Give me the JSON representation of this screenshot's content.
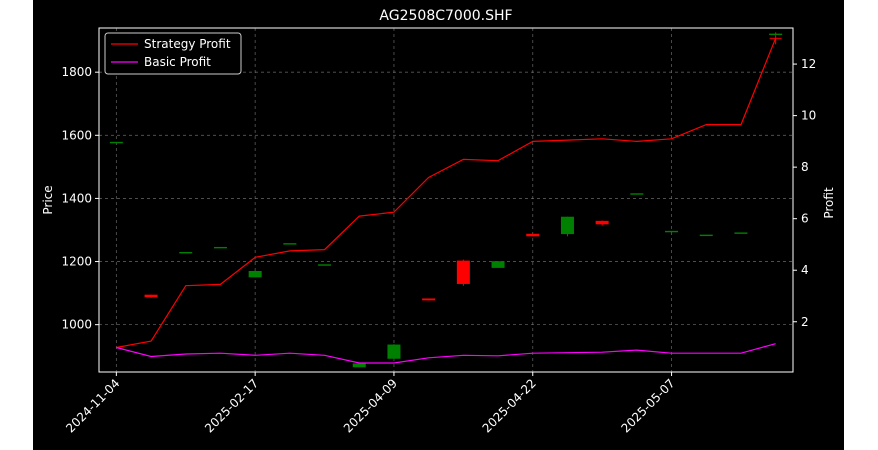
{
  "colors": {
    "background": "#000000",
    "strategy_profit": "#ff0000",
    "basic_profit": "#ff00ff",
    "candle_up": "#008000",
    "candle_down": "#ff0000",
    "grid": "#808080",
    "axes": "#ffffff"
  },
  "chart_data": {
    "type": "line",
    "title": "AG2508C7000.SHF",
    "ylabel_left": "Price",
    "ylabel_right": "Profit",
    "x_index_range": [
      -0.5,
      19.5
    ],
    "x_ticks": [
      {
        "label": "2024-11-04",
        "index": 0
      },
      {
        "label": "2025-02-17",
        "index": 4
      },
      {
        "label": "2025-04-09",
        "index": 8
      },
      {
        "label": "2025-04-22",
        "index": 12
      },
      {
        "label": "2025-05-07",
        "index": 16
      }
    ],
    "ylim_left": [
      850,
      1940
    ],
    "yticks_left": [
      1000,
      1200,
      1400,
      1600,
      1800
    ],
    "ylim_right": [
      0.05,
      13.4
    ],
    "yticks_right": [
      2,
      4,
      6,
      8,
      10,
      12
    ],
    "grid": true,
    "legend_position": "upper left",
    "legend": [
      {
        "label": "Strategy Profit",
        "color": "#ff0000"
      },
      {
        "label": "Basic Profit",
        "color": "#ff00ff"
      }
    ],
    "candles": [
      {
        "i": 0,
        "open": 1577,
        "close": 1577,
        "high": 1577,
        "low": 1577
      },
      {
        "i": 1,
        "open": 1095,
        "close": 1087,
        "high": 1095,
        "low": 1085
      },
      {
        "i": 2,
        "open": 1228,
        "close": 1228,
        "high": 1228,
        "low": 1228
      },
      {
        "i": 3,
        "open": 1244,
        "close": 1244,
        "high": 1244,
        "low": 1244
      },
      {
        "i": 4,
        "open": 1150,
        "close": 1170,
        "high": 1172,
        "low": 1150
      },
      {
        "i": 5,
        "open": 1256,
        "close": 1256,
        "high": 1256,
        "low": 1256
      },
      {
        "i": 6,
        "open": 1189,
        "close": 1189,
        "high": 1189,
        "low": 1189
      },
      {
        "i": 7,
        "open": 865,
        "close": 877,
        "high": 877,
        "low": 865
      },
      {
        "i": 8,
        "open": 892,
        "close": 937,
        "high": 938,
        "low": 892
      },
      {
        "i": 9,
        "open": 1083,
        "close": 1077,
        "high": 1083,
        "low": 1077
      },
      {
        "i": 10,
        "open": 1203,
        "close": 1129,
        "high": 1206,
        "low": 1123
      },
      {
        "i": 11,
        "open": 1180,
        "close": 1201,
        "high": 1201,
        "low": 1180
      },
      {
        "i": 12,
        "open": 1288,
        "close": 1280,
        "high": 1288,
        "low": 1280
      },
      {
        "i": 13,
        "open": 1287,
        "close": 1342,
        "high": 1342,
        "low": 1280
      },
      {
        "i": 14,
        "open": 1329,
        "close": 1318,
        "high": 1330,
        "low": 1314
      },
      {
        "i": 15,
        "open": 1414,
        "close": 1414,
        "high": 1414,
        "low": 1414
      },
      {
        "i": 16,
        "open": 1295,
        "close": 1295,
        "high": 1295,
        "low": 1295
      },
      {
        "i": 17,
        "open": 1283,
        "close": 1283,
        "high": 1283,
        "low": 1283
      },
      {
        "i": 18,
        "open": 1290,
        "close": 1290,
        "high": 1290,
        "low": 1290
      },
      {
        "i": 19,
        "open": 1920,
        "close": 1920,
        "high": 1920,
        "low": 1920
      }
    ],
    "series": [
      {
        "name": "Strategy Profit",
        "color": "#ff0000",
        "axis": "right",
        "values": [
          1.0,
          1.25,
          3.4,
          3.45,
          4.5,
          4.75,
          4.8,
          6.1,
          6.25,
          7.6,
          8.3,
          8.25,
          9.0,
          9.05,
          9.1,
          9.0,
          9.1,
          9.65,
          9.65,
          13.0
        ]
      },
      {
        "name": "Basic Profit",
        "color": "#ff00ff",
        "axis": "right",
        "values": [
          1.0,
          0.65,
          0.75,
          0.78,
          0.7,
          0.78,
          0.7,
          0.4,
          0.4,
          0.6,
          0.7,
          0.68,
          0.78,
          0.8,
          0.82,
          0.9,
          0.78,
          0.78,
          0.78,
          1.15
        ]
      }
    ]
  }
}
